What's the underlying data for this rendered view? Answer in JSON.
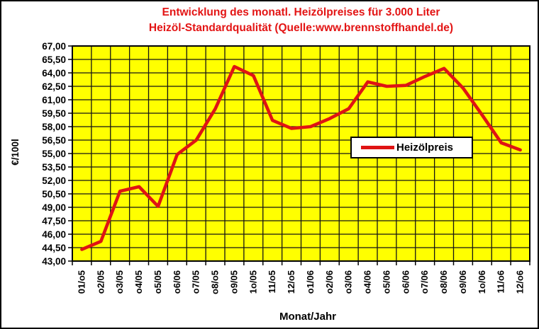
{
  "chart_data": {
    "type": "line",
    "title_line1": "Entwicklung des monatl. Heizölpreises für 3.000 Liter",
    "title_line2": "Heizöl-Standardqualität (Quelle:www.brennstoffhandel.de)",
    "title_color": "#e31414",
    "categories": [
      "01/o5",
      "o2/05",
      "o3/05",
      "o4/05",
      "o5/05",
      "o6/06",
      "o7/05",
      "o8/o5",
      "o9/05",
      "1o/05",
      "11/o5",
      "12/o5",
      "o1/06",
      "o2/06",
      "o3/06",
      "o4/06",
      "o5/06",
      "o6/06",
      "o7/06",
      "o8/06",
      "o9/06",
      "1o/06",
      "11/o6",
      "12/o6"
    ],
    "series": [
      {
        "name": "Heizölpreis",
        "color": "#df1414",
        "values": [
          44.3,
          45.2,
          50.8,
          51.3,
          49.1,
          54.9,
          56.5,
          60.0,
          64.7,
          63.7,
          58.7,
          57.8,
          58.0,
          58.9,
          60.0,
          63.0,
          62.5,
          62.6,
          63.6,
          64.5,
          62.3,
          59.3,
          56.2,
          55.4
        ]
      }
    ],
    "xlabel": "Monat/Jahr",
    "ylabel": "€/100l",
    "ylim": [
      43.0,
      67.0
    ],
    "ytick_step": 1.5,
    "ytick_labels": [
      "67,00",
      "65,50",
      "64,00",
      "62,50",
      "61,00",
      "59,50",
      "58,00",
      "56,50",
      "55,00",
      "53,50",
      "52,00",
      "50,50",
      "49,00",
      "47,50",
      "46,00",
      "44,50",
      "43,00"
    ],
    "grid": true,
    "plot_bg_color": "#ffff00",
    "grid_color": "#151515",
    "legend": {
      "label": "Heizölpreis",
      "position": "center-right"
    }
  }
}
